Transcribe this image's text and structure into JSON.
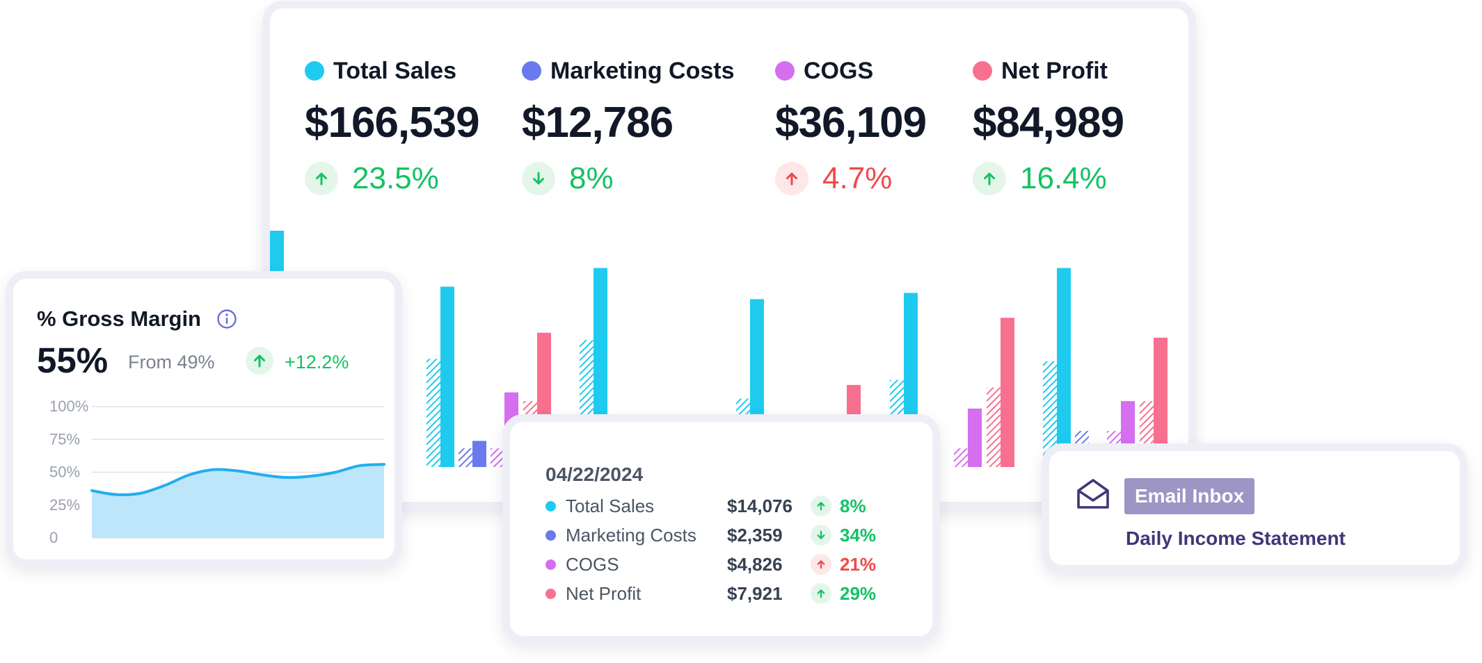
{
  "colors": {
    "total_sales": "#1ecbef",
    "marketing_costs": "#6a7aec",
    "cogs": "#d66ef0",
    "net_profit": "#f8708f",
    "positive": "#13c263",
    "negative": "#ef4a4a",
    "gross_area": "#bde6fb",
    "gross_line": "#22aef0"
  },
  "kpis": [
    {
      "label": "Total Sales",
      "value": "$166,539",
      "change": "23.5%",
      "direction": "up",
      "tone": "positive",
      "color": "#1ecbef"
    },
    {
      "label": "Marketing Costs",
      "value": "$12,786",
      "change": "8%",
      "direction": "down",
      "tone": "positive",
      "color": "#6a7aec"
    },
    {
      "label": "COGS",
      "value": "$36,109",
      "change": "4.7%",
      "direction": "up",
      "tone": "negative",
      "color": "#d66ef0"
    },
    {
      "label": "Net Profit",
      "value": "$84,989",
      "change": "16.4%",
      "direction": "up",
      "tone": "positive",
      "color": "#f8708f"
    }
  ],
  "chart_data": [
    {
      "type": "bar",
      "categories": [
        "",
        "",
        "",
        "",
        "",
        ""
      ],
      "series": [
        {
          "name": "Total Sales",
          "values": [
            19000,
            14500,
            16000,
            13500,
            14000,
            16000
          ],
          "previous": [
            6000,
            8700,
            10200,
            5500,
            7000,
            8500
          ]
        },
        {
          "name": "Marketing Costs",
          "values": [
            2900,
            2100,
            0,
            0,
            0,
            1400
          ],
          "previous": [
            2100,
            1500,
            1500,
            0,
            2500,
            2900
          ]
        },
        {
          "name": "COGS",
          "values": [
            3100,
            6000,
            0,
            2200,
            4700,
            5300
          ],
          "previous": [
            2300,
            1500,
            0,
            0,
            1500,
            2900
          ]
        },
        {
          "name": "Net Profit",
          "values": [
            8800,
            10800,
            0,
            6600,
            12000,
            10400
          ],
          "previous": [
            5200,
            5300,
            0,
            3600,
            6400,
            5300
          ]
        }
      ]
    },
    {
      "type": "area",
      "title": "% Gross Margin",
      "x": [
        0,
        1,
        2,
        3,
        4,
        5,
        6,
        7,
        8,
        9,
        10,
        11,
        12
      ],
      "y": [
        36,
        33,
        34,
        40,
        48,
        52,
        51,
        48,
        46,
        47,
        50,
        55,
        56
      ],
      "yticks": [
        "100%",
        "75%",
        "50%",
        "25%",
        "0"
      ],
      "ylim": [
        0,
        100
      ],
      "grid": true
    }
  ],
  "gross_margin": {
    "title": "% Gross Margin",
    "value": "55%",
    "from": "From 49%",
    "change": "+12.2%"
  },
  "tooltip": {
    "date": "04/22/2024",
    "rows": [
      {
        "label": "Total Sales",
        "value": "$14,076",
        "change": "8%",
        "direction": "up",
        "tone": "positive",
        "color": "#1ecbef"
      },
      {
        "label": "Marketing Costs",
        "value": "$2,359",
        "change": "34%",
        "direction": "down",
        "tone": "positive",
        "color": "#6a7aec"
      },
      {
        "label": "COGS",
        "value": "$4,826",
        "change": "21%",
        "direction": "up",
        "tone": "negative",
        "color": "#d66ef0"
      },
      {
        "label": "Net Profit",
        "value": "$7,921",
        "change": "29%",
        "direction": "up",
        "tone": "positive",
        "color": "#f8708f"
      }
    ]
  },
  "email": {
    "tag": "Email Inbox",
    "subject": "Daily Income Statement",
    "icon": "envelope-open-icon"
  }
}
